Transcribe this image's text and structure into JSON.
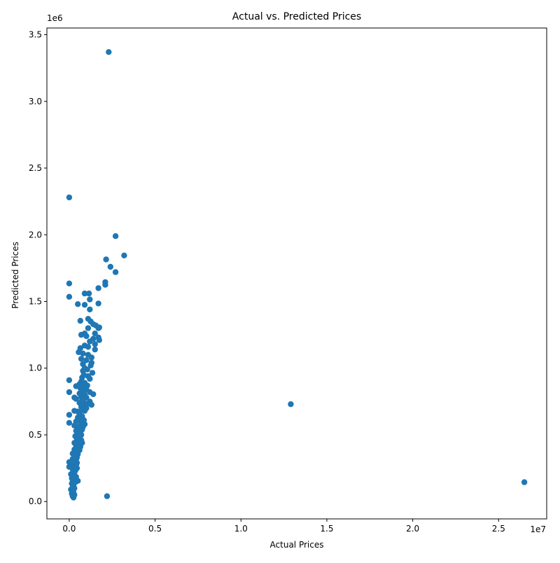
{
  "chart_data": {
    "type": "scatter",
    "title": "Actual vs. Predicted Prices",
    "xlabel": "Actual Prices",
    "ylabel": "Predicted Prices",
    "x_offset_label": "1e7",
    "y_offset_label": "1e6",
    "xlim": [
      -0.13,
      2.78
    ],
    "ylim": [
      -0.13,
      3.55
    ],
    "x_ticks": [
      0.0,
      0.5,
      1.0,
      1.5,
      2.0,
      2.5
    ],
    "x_tick_labels": [
      "0.0",
      "0.5",
      "1.0",
      "1.5",
      "2.0",
      "2.5"
    ],
    "y_ticks": [
      0.0,
      0.5,
      1.0,
      1.5,
      2.0,
      2.5,
      3.0,
      3.5
    ],
    "y_tick_labels": [
      "0.0",
      "0.5",
      "1.0",
      "1.5",
      "2.0",
      "2.5",
      "3.0",
      "3.5"
    ],
    "grid": false,
    "marker_color": "#1f77b4",
    "series": [
      {
        "points": [
          [
            0.23,
            3.37
          ],
          [
            0.0,
            2.28
          ],
          [
            0.27,
            1.99
          ],
          [
            0.32,
            1.845
          ],
          [
            0.215,
            1.815
          ],
          [
            0.24,
            1.76
          ],
          [
            0.27,
            1.72
          ],
          [
            0.0,
            1.635
          ],
          [
            0.21,
            1.645
          ],
          [
            0.21,
            1.625
          ],
          [
            0.17,
            1.6
          ],
          [
            0.0,
            1.535
          ],
          [
            0.09,
            1.56
          ],
          [
            0.115,
            1.56
          ],
          [
            0.12,
            1.515
          ],
          [
            0.05,
            1.48
          ],
          [
            0.09,
            1.475
          ],
          [
            0.17,
            1.485
          ],
          [
            0.12,
            1.44
          ],
          [
            0.065,
            1.355
          ],
          [
            0.11,
            1.37
          ],
          [
            0.125,
            1.35
          ],
          [
            0.14,
            1.33
          ],
          [
            0.155,
            1.32
          ],
          [
            0.17,
            1.3
          ],
          [
            0.175,
            1.305
          ],
          [
            0.11,
            1.3
          ],
          [
            0.07,
            1.25
          ],
          [
            0.09,
            1.26
          ],
          [
            0.15,
            1.26
          ],
          [
            0.1,
            1.24
          ],
          [
            0.17,
            1.23
          ],
          [
            0.14,
            1.22
          ],
          [
            0.175,
            1.21
          ],
          [
            0.12,
            1.2
          ],
          [
            0.15,
            1.18
          ],
          [
            0.09,
            1.17
          ],
          [
            0.11,
            1.16
          ],
          [
            0.065,
            1.15
          ],
          [
            0.15,
            1.14
          ],
          [
            0.055,
            1.12
          ],
          [
            0.08,
            1.11
          ],
          [
            0.11,
            1.1
          ],
          [
            0.13,
            1.08
          ],
          [
            0.07,
            1.07
          ],
          [
            0.1,
            1.06
          ],
          [
            0.13,
            1.04
          ],
          [
            0.08,
            1.03
          ],
          [
            0.125,
            1.02
          ],
          [
            0.09,
            1.0
          ],
          [
            0.105,
            0.99
          ],
          [
            0.08,
            0.98
          ],
          [
            0.135,
            0.965
          ],
          [
            0.085,
            0.95
          ],
          [
            0.11,
            0.94
          ],
          [
            0.075,
            0.93
          ],
          [
            0.12,
            0.92
          ],
          [
            0.0,
            0.91
          ],
          [
            0.07,
            0.9
          ],
          [
            0.09,
            0.89
          ],
          [
            0.06,
            0.88
          ],
          [
            0.04,
            0.865
          ],
          [
            0.105,
            0.87
          ],
          [
            0.08,
            0.86
          ],
          [
            0.065,
            0.85
          ],
          [
            0.1,
            0.84
          ],
          [
            0.075,
            0.83
          ],
          [
            0.0,
            0.82
          ],
          [
            0.12,
            0.82
          ],
          [
            0.14,
            0.805
          ],
          [
            0.06,
            0.81
          ],
          [
            0.09,
            0.8
          ],
          [
            0.03,
            0.78
          ],
          [
            0.04,
            0.77
          ],
          [
            0.07,
            0.785
          ],
          [
            0.1,
            0.78
          ],
          [
            0.075,
            0.76
          ],
          [
            0.12,
            0.75
          ],
          [
            0.085,
            0.745
          ],
          [
            0.11,
            0.735
          ],
          [
            0.13,
            0.725
          ],
          [
            0.06,
            0.74
          ],
          [
            0.095,
            0.72
          ],
          [
            0.07,
            0.71
          ],
          [
            0.1,
            0.7
          ],
          [
            0.08,
            0.69
          ],
          [
            0.03,
            0.68
          ],
          [
            0.05,
            0.675
          ],
          [
            0.09,
            0.68
          ],
          [
            0.06,
            0.66
          ],
          [
            0.0,
            0.65
          ],
          [
            0.075,
            0.64
          ],
          [
            0.05,
            0.63
          ],
          [
            0.065,
            0.62
          ],
          [
            0.085,
            0.61
          ],
          [
            0.04,
            0.6
          ],
          [
            0.0,
            0.59
          ],
          [
            0.07,
            0.595
          ],
          [
            0.09,
            0.58
          ],
          [
            0.03,
            0.57
          ],
          [
            0.06,
            0.565
          ],
          [
            0.08,
            0.56
          ],
          [
            0.05,
            0.55
          ],
          [
            0.075,
            0.54
          ],
          [
            0.04,
            0.53
          ],
          [
            0.065,
            0.52
          ],
          [
            0.05,
            0.51
          ],
          [
            0.07,
            0.5
          ],
          [
            0.035,
            0.49
          ],
          [
            0.06,
            0.48
          ],
          [
            0.045,
            0.47
          ],
          [
            0.07,
            0.46
          ],
          [
            0.05,
            0.45
          ],
          [
            0.03,
            0.44
          ],
          [
            0.075,
            0.44
          ],
          [
            0.055,
            0.43
          ],
          [
            0.04,
            0.42
          ],
          [
            0.065,
            0.41
          ],
          [
            0.05,
            0.4
          ],
          [
            0.03,
            0.39
          ],
          [
            0.06,
            0.385
          ],
          [
            0.04,
            0.37
          ],
          [
            0.02,
            0.36
          ],
          [
            0.05,
            0.355
          ],
          [
            0.035,
            0.34
          ],
          [
            0.045,
            0.33
          ],
          [
            0.02,
            0.32
          ],
          [
            0.04,
            0.31
          ],
          [
            0.03,
            0.3
          ],
          [
            0.0,
            0.295
          ],
          [
            0.045,
            0.29
          ],
          [
            0.025,
            0.28
          ],
          [
            0.04,
            0.27
          ],
          [
            0.0,
            0.26
          ],
          [
            0.03,
            0.255
          ],
          [
            0.045,
            0.25
          ],
          [
            0.02,
            0.24
          ],
          [
            0.035,
            0.23
          ],
          [
            0.025,
            0.22
          ],
          [
            0.01,
            0.205
          ],
          [
            0.03,
            0.2
          ],
          [
            0.02,
            0.19
          ],
          [
            0.04,
            0.185
          ],
          [
            0.015,
            0.175
          ],
          [
            0.03,
            0.165
          ],
          [
            0.05,
            0.155
          ],
          [
            0.02,
            0.15
          ],
          [
            0.035,
            0.145
          ],
          [
            0.015,
            0.135
          ],
          [
            0.025,
            0.12
          ],
          [
            0.02,
            0.11
          ],
          [
            0.03,
            0.1
          ],
          [
            0.01,
            0.09
          ],
          [
            0.02,
            0.08
          ],
          [
            0.025,
            0.07
          ],
          [
            0.015,
            0.06
          ],
          [
            0.03,
            0.05
          ],
          [
            0.02,
            0.04
          ],
          [
            0.025,
            0.03
          ],
          [
            0.22,
            0.04
          ],
          [
            1.29,
            0.73
          ],
          [
            2.65,
            0.145
          ]
        ]
      }
    ]
  }
}
